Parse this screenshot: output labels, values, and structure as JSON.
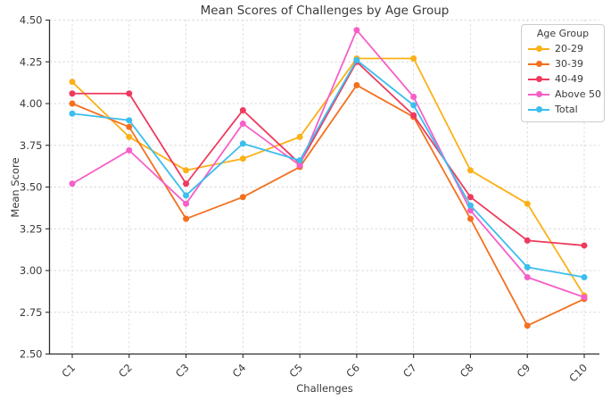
{
  "title": "Mean Scores of Challenges by Age Group",
  "chart_data": {
    "type": "line",
    "title": "Mean Scores of Challenges by Age Group",
    "xlabel": "Challenges",
    "ylabel": "Mean Score",
    "categories": [
      "C1",
      "C2",
      "C3",
      "C4",
      "C5",
      "C6",
      "C7",
      "C8",
      "C9",
      "C10"
    ],
    "ylim": [
      2.5,
      4.5
    ],
    "ytick_step": 0.25,
    "yticks": [
      "2.50",
      "2.75",
      "3.00",
      "3.25",
      "3.50",
      "3.75",
      "4.00",
      "4.25",
      "4.50"
    ],
    "grid": "dashed, both axes",
    "legend_title": "Age Group",
    "legend_position": "upper right",
    "series": [
      {
        "name": "20-29",
        "color": "#fbb117",
        "values": [
          4.13,
          3.8,
          3.6,
          3.67,
          3.8,
          4.27,
          4.27,
          3.6,
          3.4,
          2.85
        ]
      },
      {
        "name": "30-39",
        "color": "#f3701e",
        "values": [
          4.0,
          3.86,
          3.31,
          3.44,
          3.62,
          4.11,
          3.92,
          3.31,
          2.67,
          2.83
        ]
      },
      {
        "name": "40-49",
        "color": "#ee3a5e",
        "values": [
          4.06,
          4.06,
          3.52,
          3.96,
          3.64,
          4.25,
          3.93,
          3.44,
          3.18,
          3.15
        ]
      },
      {
        "name": "Above 50",
        "color": "#f65fc8",
        "values": [
          3.52,
          3.72,
          3.4,
          3.88,
          3.63,
          4.44,
          4.04,
          3.36,
          2.96,
          2.84
        ]
      },
      {
        "name": "Total",
        "color": "#3cbeee",
        "values": [
          3.94,
          3.9,
          3.45,
          3.76,
          3.66,
          4.26,
          3.99,
          3.39,
          3.02,
          2.96
        ]
      }
    ]
  },
  "style_colors": {
    "grid": "#d9d9d9",
    "spine": "#2e2e2e",
    "text": "#3a3a3a",
    "background": "#ffffff"
  }
}
